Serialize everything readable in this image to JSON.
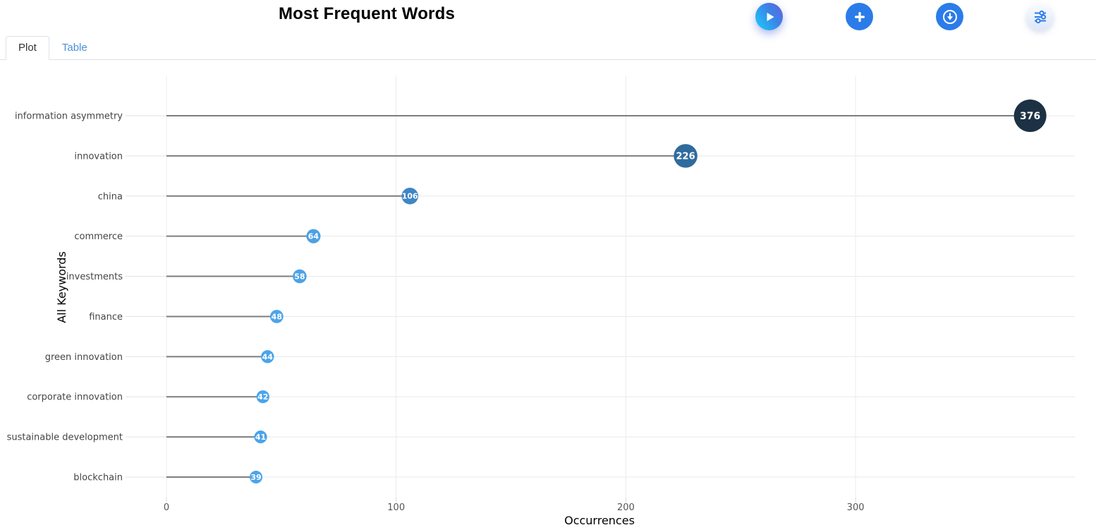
{
  "header": {
    "title": "Most Frequent Words",
    "buttons": [
      {
        "id": "run",
        "icon": "play-icon"
      },
      {
        "id": "add",
        "icon": "plus-icon"
      },
      {
        "id": "download",
        "icon": "download-circle-icon"
      },
      {
        "id": "filters",
        "icon": "sliders-icon"
      }
    ]
  },
  "tabs": {
    "items": [
      {
        "label": "Plot",
        "active": true
      },
      {
        "label": "Table",
        "active": false
      }
    ]
  },
  "chart_data": {
    "type": "scatter",
    "variant": "horizontal-lollipop",
    "title": "Most Frequent Words",
    "categories": [
      "information asymmetry",
      "innovation",
      "china",
      "commerce",
      "investments",
      "finance",
      "green innovation",
      "corporate innovation",
      "sustainable development",
      "blockchain"
    ],
    "values": [
      376,
      226,
      106,
      64,
      58,
      48,
      44,
      42,
      41,
      39
    ],
    "point_colors": [
      "#1c3144",
      "#2f6b9d",
      "#3e86c4",
      "#4da0e4",
      "#4da2e6",
      "#4ba4ea",
      "#4ba4ea",
      "#4ba4ea",
      "#4ba4ea",
      "#4ba4ea"
    ],
    "xlabel": "Occurrences",
    "ylabel": "All Keywords",
    "x_ticks": [
      0,
      100,
      200,
      300
    ],
    "xlim": [
      0,
      400
    ],
    "grid": "vertical",
    "legend": "none",
    "stem_color": "#7d7d7d",
    "gridline_color": "#ececec",
    "label_color": "#444444",
    "tick_color": "#555555"
  },
  "colors": {
    "accent": "#2b7ce9",
    "tab_link": "#4a90d9",
    "point_dark": "#1c3144",
    "point_light": "#4ba4ea"
  }
}
